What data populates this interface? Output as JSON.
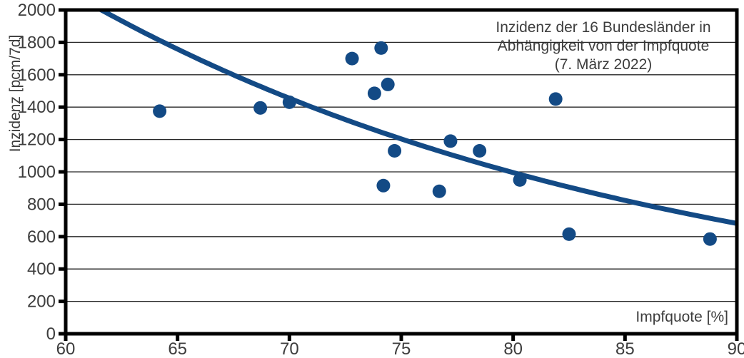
{
  "chart_data": {
    "type": "scatter",
    "annotation": [
      "Inzidenz der 16 Bundesländer in",
      "Abhängigkeit von der Impfquote",
      "(7. März 2022)"
    ],
    "xlabel": "Impfquote [%]",
    "ylabel": "Inzidenz [pcm/7d]",
    "xlim": [
      60,
      90
    ],
    "ylim": [
      0,
      2000
    ],
    "x_ticks": [
      60,
      65,
      70,
      75,
      80,
      85,
      90
    ],
    "y_ticks": [
      0,
      200,
      400,
      600,
      800,
      1000,
      1200,
      1400,
      1600,
      1800,
      2000
    ],
    "grid": "horizontal",
    "legend": "none",
    "series": [
      {
        "marker": "circle",
        "points": [
          [
            64.2,
            1375
          ],
          [
            68.7,
            1395
          ],
          [
            70.0,
            1430
          ],
          [
            72.8,
            1700
          ],
          [
            73.8,
            1485
          ],
          [
            74.1,
            1765
          ],
          [
            74.2,
            915
          ],
          [
            74.4,
            1540
          ],
          [
            74.7,
            1130
          ],
          [
            76.7,
            880
          ],
          [
            77.2,
            1190
          ],
          [
            78.5,
            1130
          ],
          [
            80.3,
            950
          ],
          [
            81.9,
            1450
          ],
          [
            82.5,
            615
          ],
          [
            88.8,
            585
          ]
        ]
      }
    ],
    "trendline": {
      "type": "exponential",
      "a": 20650,
      "b": -0.0379,
      "x_start": 61.0,
      "x_end": 90
    },
    "colors": {
      "series": "#134a85",
      "text": "#3d3d3d",
      "grid": "#262626",
      "axis": "#000000",
      "background": "#ffffff"
    }
  }
}
